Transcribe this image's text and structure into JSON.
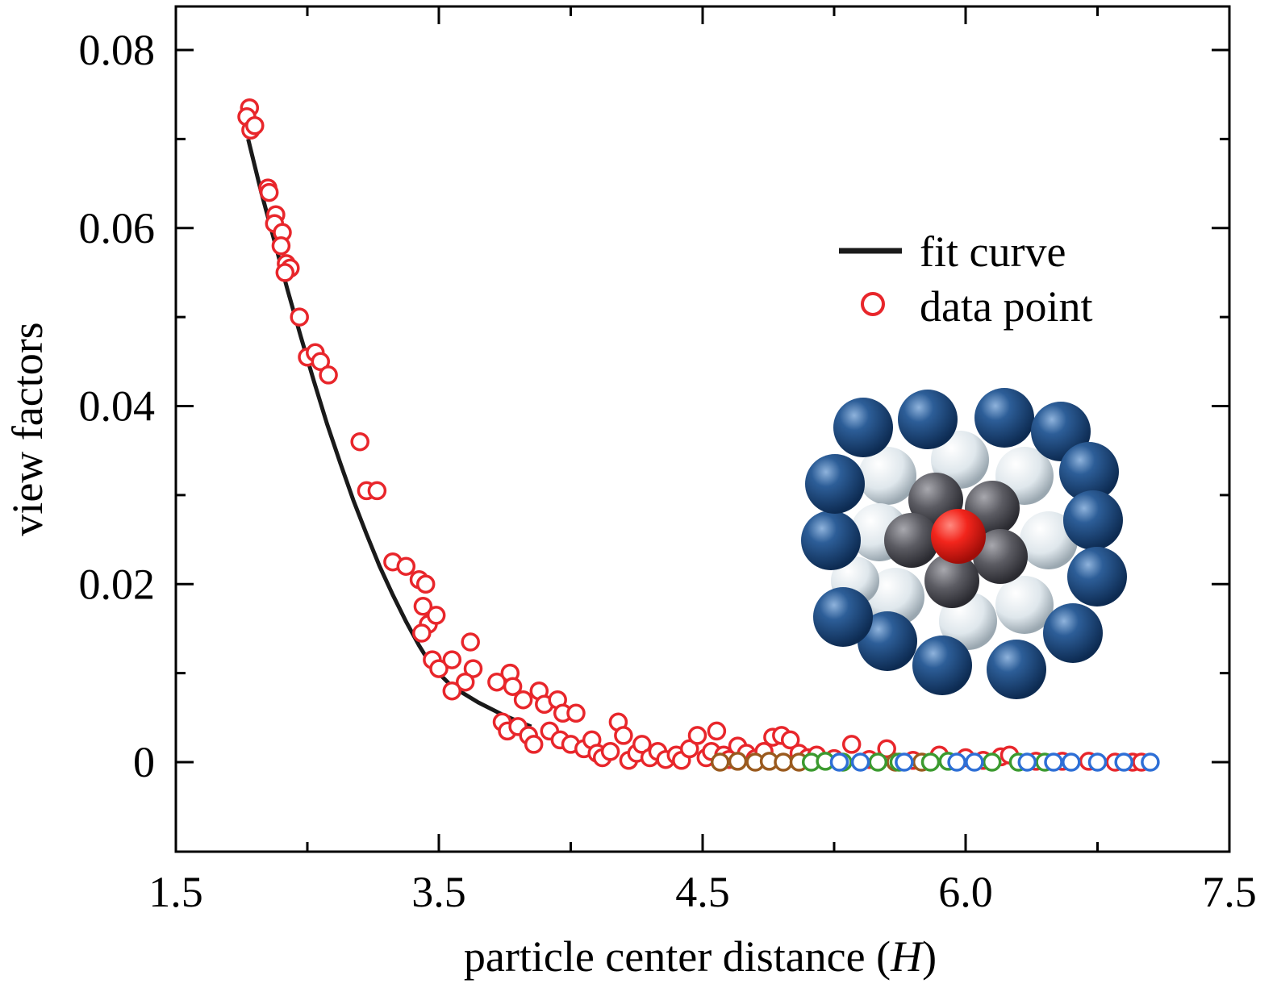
{
  "chart_data": {
    "type": "scatter",
    "title": "",
    "xlabel": "particle center distance (",
    "xlabel_italic": "H",
    "xlabel_end": ")",
    "ylabel": "view factors",
    "xlim": [
      1.5,
      7.5
    ],
    "ylim": [
      -0.01,
      0.085
    ],
    "x_tick_values": [
      1.5,
      3.5,
      4.5,
      6.0,
      7.5
    ],
    "x_tick_labels": [
      "1.5",
      "3.5",
      "4.5",
      "6.0",
      "7.5"
    ],
    "y_tick_values": [
      0,
      0.02,
      0.04,
      0.06,
      0.08
    ],
    "y_tick_labels": [
      "0",
      "0.02",
      "0.04",
      "0.06",
      "0.08"
    ],
    "legend": {
      "position": "upper-right",
      "line_label": "fit curve",
      "marker_label": "data point"
    },
    "colors": {
      "fit": "#1a1a1a",
      "data": "#e8262b",
      "green": "#3b9a2f",
      "blue": "#2e6fd6",
      "brown": "#9a5a1e",
      "axis": "#000000"
    },
    "fit_curve": {
      "x": [
        2.05,
        2.15,
        2.25,
        2.35,
        2.45,
        2.55,
        2.65,
        2.75,
        2.85,
        2.95,
        3.05,
        3.15,
        3.25,
        3.35,
        3.45,
        3.55,
        3.65,
        3.75,
        3.85
      ],
      "y": [
        0.07,
        0.064,
        0.0585,
        0.053,
        0.0478,
        0.0428,
        0.038,
        0.0336,
        0.0294,
        0.0256,
        0.022,
        0.0188,
        0.0158,
        0.0131,
        0.0107,
        0.0085,
        0.0067,
        0.0052,
        0.004
      ]
    },
    "series": [
      {
        "name": "data point",
        "color": "red",
        "points": [
          [
            2.06,
            0.0735
          ],
          [
            2.04,
            0.0725
          ],
          [
            2.07,
            0.071
          ],
          [
            2.1,
            0.0715
          ],
          [
            2.2,
            0.0645
          ],
          [
            2.21,
            0.064
          ],
          [
            2.26,
            0.0615
          ],
          [
            2.25,
            0.0605
          ],
          [
            2.31,
            0.0595
          ],
          [
            2.3,
            0.058
          ],
          [
            2.34,
            0.056
          ],
          [
            2.37,
            0.0555
          ],
          [
            2.33,
            0.055
          ],
          [
            2.44,
            0.05
          ],
          [
            2.5,
            0.0455
          ],
          [
            2.56,
            0.046
          ],
          [
            2.6,
            0.045
          ],
          [
            2.66,
            0.0435
          ],
          [
            2.9,
            0.036
          ],
          [
            2.95,
            0.0305
          ],
          [
            3.03,
            0.0305
          ],
          [
            3.15,
            0.0225
          ],
          [
            3.25,
            0.022
          ],
          [
            3.35,
            0.0205
          ],
          [
            3.4,
            0.02
          ],
          [
            3.38,
            0.0175
          ],
          [
            3.42,
            0.0155
          ],
          [
            3.37,
            0.0145
          ],
          [
            3.48,
            0.0165
          ],
          [
            3.45,
            0.0115
          ],
          [
            3.5,
            0.0105
          ],
          [
            3.55,
            0.0115
          ],
          [
            3.62,
            0.0135
          ],
          [
            3.63,
            0.0105
          ],
          [
            3.6,
            0.009
          ],
          [
            3.55,
            0.008
          ],
          [
            3.72,
            0.009
          ],
          [
            3.77,
            0.01
          ],
          [
            3.78,
            0.0085
          ],
          [
            3.82,
            0.007
          ],
          [
            3.88,
            0.008
          ],
          [
            3.9,
            0.0065
          ],
          [
            3.95,
            0.007
          ],
          [
            3.97,
            0.0055
          ],
          [
            4.02,
            0.0055
          ],
          [
            3.74,
            0.0045
          ],
          [
            3.76,
            0.0035
          ],
          [
            3.8,
            0.004
          ],
          [
            3.84,
            0.003
          ],
          [
            3.86,
            0.002
          ],
          [
            3.92,
            0.0035
          ],
          [
            3.96,
            0.0025
          ],
          [
            4.0,
            0.002
          ],
          [
            4.05,
            0.0015
          ],
          [
            4.08,
            0.0025
          ],
          [
            4.1,
            0.001
          ],
          [
            4.12,
            0.0005
          ],
          [
            4.15,
            0.0012
          ],
          [
            4.18,
            0.0045
          ],
          [
            4.2,
            0.003
          ],
          [
            4.22,
            0.0002
          ],
          [
            4.25,
            0.001
          ],
          [
            4.27,
            0.002
          ],
          [
            4.3,
            0.0005
          ],
          [
            4.33,
            0.0012
          ],
          [
            4.36,
            0.0003
          ],
          [
            4.4,
            0.0008
          ],
          [
            4.42,
            0.0002
          ],
          [
            4.45,
            0.0015
          ],
          [
            4.48,
            0.003
          ],
          [
            4.52,
            0.0005
          ],
          [
            4.55,
            0.0012
          ],
          [
            4.58,
            0.0035
          ],
          [
            4.62,
            0.0008
          ],
          [
            4.65,
            0.0003
          ],
          [
            4.7,
            0.0018
          ],
          [
            4.75,
            0.001
          ],
          [
            4.8,
            0.0004
          ],
          [
            4.85,
            0.0012
          ],
          [
            4.9,
            0.0028
          ],
          [
            4.95,
            0.003
          ],
          [
            5.0,
            0.0025
          ],
          [
            5.05,
            0.001
          ],
          [
            5.1,
            0.0005
          ],
          [
            5.15,
            0.0008
          ],
          [
            5.25,
            0.0004
          ],
          [
            5.35,
            0.002
          ],
          [
            5.45,
            0.0003
          ],
          [
            5.55,
            0.0015
          ],
          [
            5.7,
            0.0002
          ],
          [
            5.85,
            0.0008
          ],
          [
            6.0,
            0.0005
          ],
          [
            6.1,
            0.0002
          ],
          [
            6.2,
            0.0006
          ],
          [
            6.25,
            0.0008
          ],
          [
            6.4,
            0.0001
          ],
          [
            6.55,
            0.0001
          ],
          [
            6.7,
            0.0001
          ],
          [
            6.85,
            0.0
          ],
          [
            6.95,
            0.0
          ],
          [
            7.0,
            0.0
          ]
        ]
      },
      {
        "name": "",
        "color": "brown",
        "points": [
          [
            4.6,
            0.0
          ],
          [
            4.7,
            0.0001
          ],
          [
            4.8,
            0.0
          ],
          [
            4.88,
            0.0001
          ],
          [
            4.96,
            0.0
          ],
          [
            5.05,
            0.0
          ],
          [
            5.6,
            0.0
          ],
          [
            5.75,
            0.0
          ]
        ]
      },
      {
        "name": "",
        "color": "green",
        "points": [
          [
            5.12,
            0.0
          ],
          [
            5.2,
            0.0001
          ],
          [
            5.3,
            0.0
          ],
          [
            5.5,
            0.0
          ],
          [
            5.62,
            0.0
          ],
          [
            5.8,
            0.0
          ],
          [
            5.9,
            0.0001
          ],
          [
            6.15,
            0.0
          ],
          [
            6.3,
            0.0
          ],
          [
            6.45,
            0.0
          ]
        ]
      },
      {
        "name": "",
        "color": "blue",
        "points": [
          [
            5.28,
            0.0
          ],
          [
            5.4,
            0.0
          ],
          [
            5.65,
            0.0
          ],
          [
            5.95,
            0.0
          ],
          [
            6.05,
            0.0
          ],
          [
            6.35,
            0.0
          ],
          [
            6.5,
            0.0
          ],
          [
            6.6,
            0.0
          ],
          [
            6.75,
            0.0
          ],
          [
            6.9,
            0.0
          ],
          [
            7.05,
            0.0
          ]
        ]
      }
    ]
  }
}
